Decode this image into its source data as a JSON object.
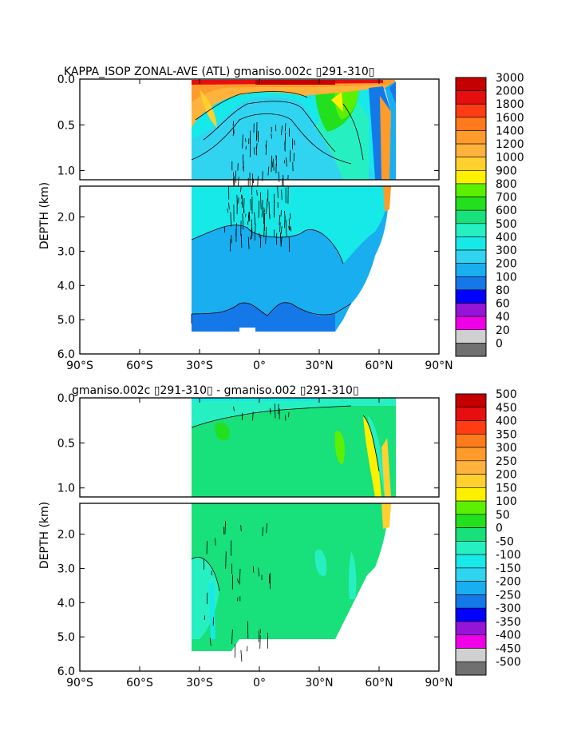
{
  "chart_data": [
    {
      "type": "heatmap",
      "title": "KAPPA_ISOP ZONAL-AVE (ATL) gmaniso.002c ▯291-310▯",
      "xlabel": "",
      "ylabel": "DEPTH (km)",
      "x_ticks": [
        "90°S",
        "60°S",
        "30°S",
        "0°",
        "30°N",
        "60°N",
        "90°N"
      ],
      "x_values": [
        -90,
        -60,
        -30,
        0,
        30,
        60,
        90
      ],
      "y_ticks_upper": [
        "0.0",
        "0.5",
        "1.0"
      ],
      "y_ticks_upper_values": [
        0,
        0.5,
        1.0
      ],
      "y_ticks_lower": [
        "2.0",
        "3.0",
        "4.0",
        "5.0",
        "6.0"
      ],
      "y_ticks_lower_values": [
        2,
        3,
        4,
        5,
        6
      ],
      "xlim": [
        -90,
        90
      ],
      "ylim_upper": [
        0,
        1.1
      ],
      "ylim_lower": [
        1.1,
        6.0
      ],
      "colorbar_labels": [
        "3000",
        "2000",
        "1800",
        "1600",
        "1400",
        "1200",
        "1000",
        "900",
        "800",
        "700",
        "600",
        "500",
        "400",
        "300",
        "200",
        "100",
        "80",
        "60",
        "40",
        "20",
        "0"
      ],
      "colors": [
        "#c40000",
        "#e60e0e",
        "#ff3c14",
        "#ff7a1a",
        "#ff9b2a",
        "#ffb23c",
        "#ffd02e",
        "#fff000",
        "#5cf000",
        "#22e01e",
        "#18e07a",
        "#26f0c2",
        "#17e8e8",
        "#30d4f0",
        "#18aef0",
        "#1478e8",
        "#0000ff",
        "#9414d8",
        "#f000e6",
        "#d0d0d0",
        "#707070"
      ]
    },
    {
      "type": "heatmap",
      "title": "gmaniso.002c ▯291-310▯ - gmaniso.002 ▯291-310▯",
      "xlabel": "",
      "ylabel": "DEPTH (km)",
      "x_ticks": [
        "90°S",
        "60°S",
        "30°S",
        "0°",
        "30°N",
        "60°N",
        "90°N"
      ],
      "x_values": [
        -90,
        -60,
        -30,
        0,
        30,
        60,
        90
      ],
      "y_ticks_upper": [
        "0.0",
        "0.5",
        "1.0"
      ],
      "y_ticks_upper_values": [
        0,
        0.5,
        1.0
      ],
      "y_ticks_lower": [
        "2.0",
        "3.0",
        "4.0",
        "5.0",
        "6.0"
      ],
      "y_ticks_lower_values": [
        2,
        3,
        4,
        5,
        6
      ],
      "xlim": [
        -90,
        90
      ],
      "ylim_upper": [
        0,
        1.1
      ],
      "ylim_lower": [
        1.1,
        6.0
      ],
      "colorbar_labels": [
        "500",
        "450",
        "400",
        "350",
        "300",
        "250",
        "200",
        "150",
        "100",
        "50",
        "0",
        "-50",
        "-100",
        "-150",
        "-200",
        "-250",
        "-300",
        "-350",
        "-400",
        "-450",
        "-500"
      ],
      "colors": [
        "#c40000",
        "#e60e0e",
        "#ff3c14",
        "#ff7a1a",
        "#ff9b2a",
        "#ffb23c",
        "#ffd02e",
        "#fff000",
        "#5cf000",
        "#22e01e",
        "#18e07a",
        "#26f0c2",
        "#17e8e8",
        "#30d4f0",
        "#18aef0",
        "#1478e8",
        "#0000ff",
        "#9414d8",
        "#f000e6",
        "#d0d0d0",
        "#707070"
      ]
    }
  ]
}
